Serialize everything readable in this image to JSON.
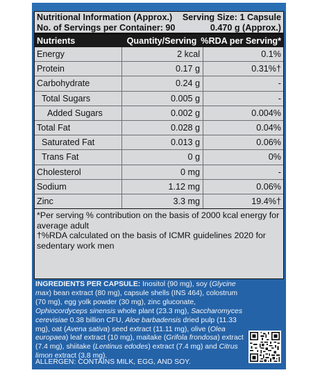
{
  "header": {
    "line1_left": "Nutritional Information (Approx.)",
    "line1_right": "Serving Size: 1 Capsule",
    "line2_left": "No. of Servings per Container: 90",
    "line2_right": "0.470 g (Approx.)"
  },
  "columns": {
    "nutrients": "Nutrients",
    "quantity": "Quantity/Serving",
    "rda": "%RDA per Serving*"
  },
  "rows": [
    {
      "name": "Energy",
      "qty": "2 kcal",
      "rda": "0.1%"
    },
    {
      "name": "Protein",
      "qty": "0.17 g",
      "rda": "0.31%†"
    },
    {
      "name": "Carbohydrate",
      "qty": "0.24 g",
      "rda": "-"
    },
    {
      "name": "Total Sugars",
      "qty": "0.005 g",
      "rda": "-"
    },
    {
      "name": "Added Sugars",
      "qty": "0.002 g",
      "rda": "0.004%"
    },
    {
      "name": "Total Fat",
      "qty": "0.028 g",
      "rda": "0.04%"
    },
    {
      "name": "Saturated Fat",
      "qty": "0.013 g",
      "rda": "0.06%"
    },
    {
      "name": "Trans Fat",
      "qty": "0 g",
      "rda": "0%"
    },
    {
      "name": "Cholesterol",
      "qty": "0 mg",
      "rda": "-"
    },
    {
      "name": "Sodium",
      "qty": "1.12 mg",
      "rda": "0.06%"
    },
    {
      "name": "Zinc",
      "qty": "3.3 mg",
      "rda": "19.4%†"
    }
  ],
  "footnotes": {
    "note1": "*Per serving % contribution on the basis of 2000 kcal energy for average adult",
    "note2": "†%RDA calculated on the basis of ICMR guidelines 2020 for sedentary work men"
  },
  "ingredients": {
    "label": "INGREDIENTS PER CAPSULE:",
    "t1": " Inositol (90 mg), soy (",
    "i1": "Glycine max",
    "t2": ") bean extract (80 mg), capsule shells (INS 464), colostrum (70 mg), egg yolk powder (30 mg), zinc gluconate, ",
    "i2": "Ophiocordyceps sinensis",
    "t3": " whole plant (23.3 mg), ",
    "i3": "Saccharomyces cerevisiae",
    "t4": " 0.38 billion CFU, ",
    "i4": "Aloe barbadensis",
    "t5": " dried pulp (11.33 mg), oat (",
    "i5": "Avena sativa",
    "t6": ") seed extract (11.11 mg), olive (",
    "i6": "Olea europaea",
    "t7": ") leaf extract (10 mg), maitake (",
    "i7": "Grifola frondosa",
    "t8": ") extract (7.4 mg), shiitake (",
    "i8": "Lentinus edodes",
    "t9": ") extract (7.4 mg) and ",
    "i9": "Citrus limon",
    "t10": " extract (3.8 mg)."
  },
  "allergen": "ALLERGEN: CONTAINS MILK, EGG, AND SOY.",
  "colors": {
    "panel_blue": "#2563a8",
    "table_bg": "#d8d9db",
    "header_black": "#1a1a1a"
  }
}
